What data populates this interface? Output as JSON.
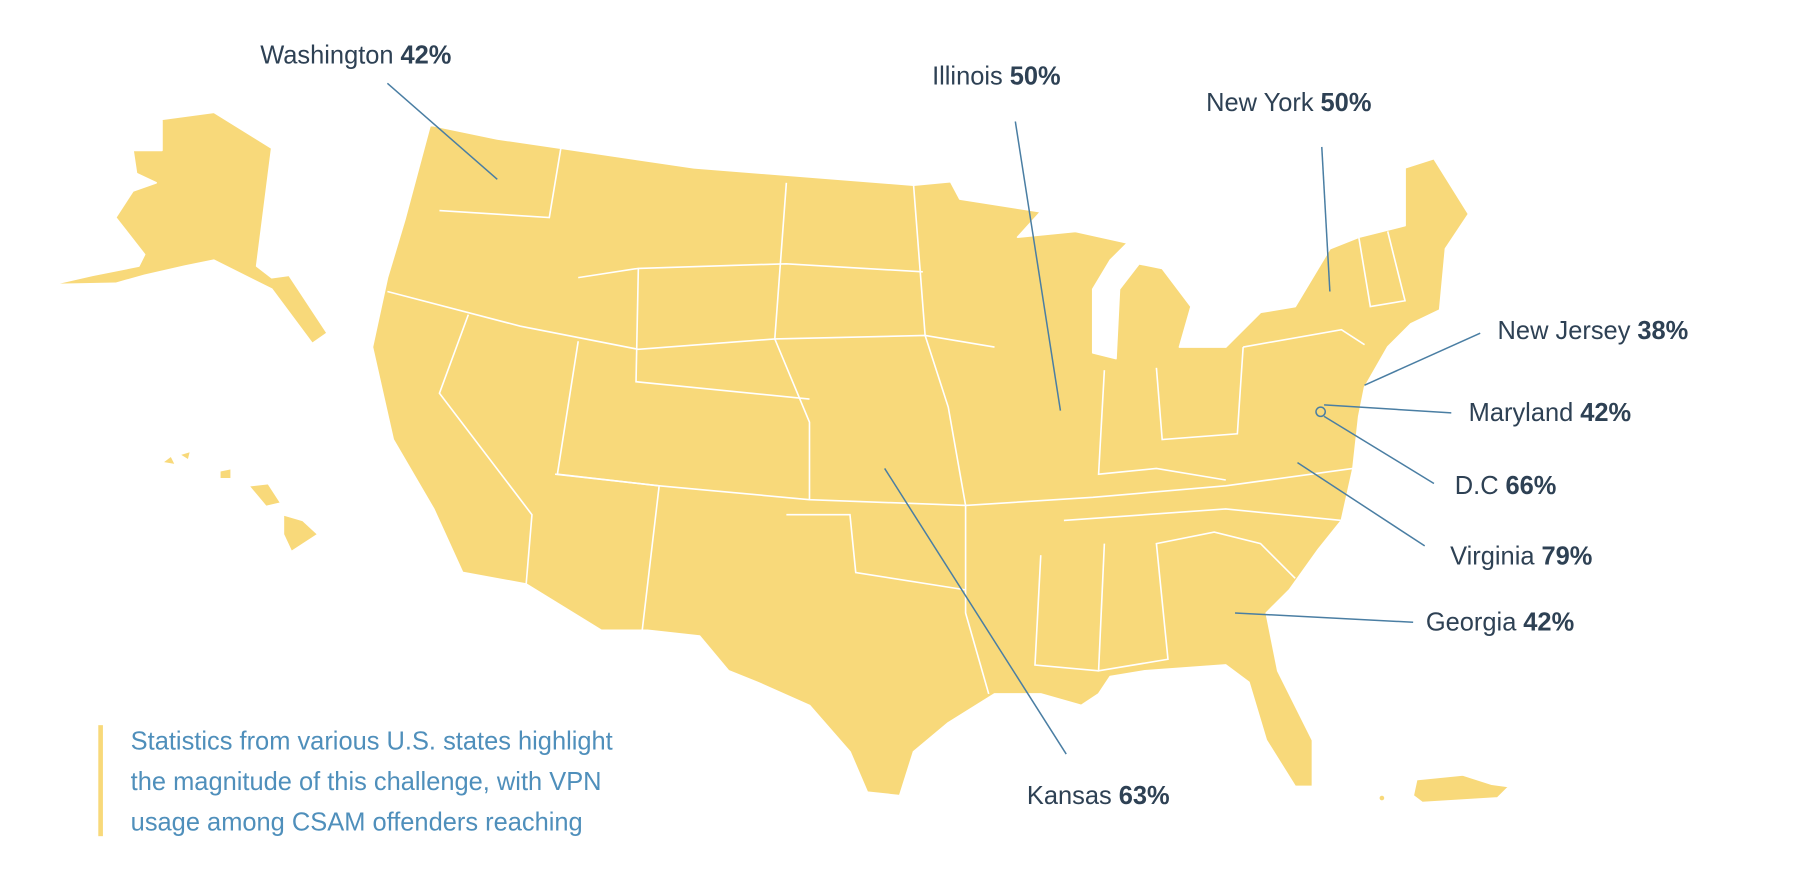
{
  "callouts": [
    {
      "state": "Washington",
      "value": "42%"
    },
    {
      "state": "Illinois",
      "value": "50%"
    },
    {
      "state": "New York",
      "value": "50%"
    },
    {
      "state": "New Jersey",
      "value": "38%"
    },
    {
      "state": "Maryland",
      "value": "42%"
    },
    {
      "state": "D.C",
      "value": "66%"
    },
    {
      "state": "Virginia",
      "value": "79%"
    },
    {
      "state": "Georgia",
      "value": "42%"
    },
    {
      "state": "Kansas",
      "value": "63%"
    }
  ],
  "caption": [
    "Statistics from various U.S. states highlight",
    "the magnitude of this challenge, with VPN",
    "usage among CSAM offenders reaching"
  ]
}
